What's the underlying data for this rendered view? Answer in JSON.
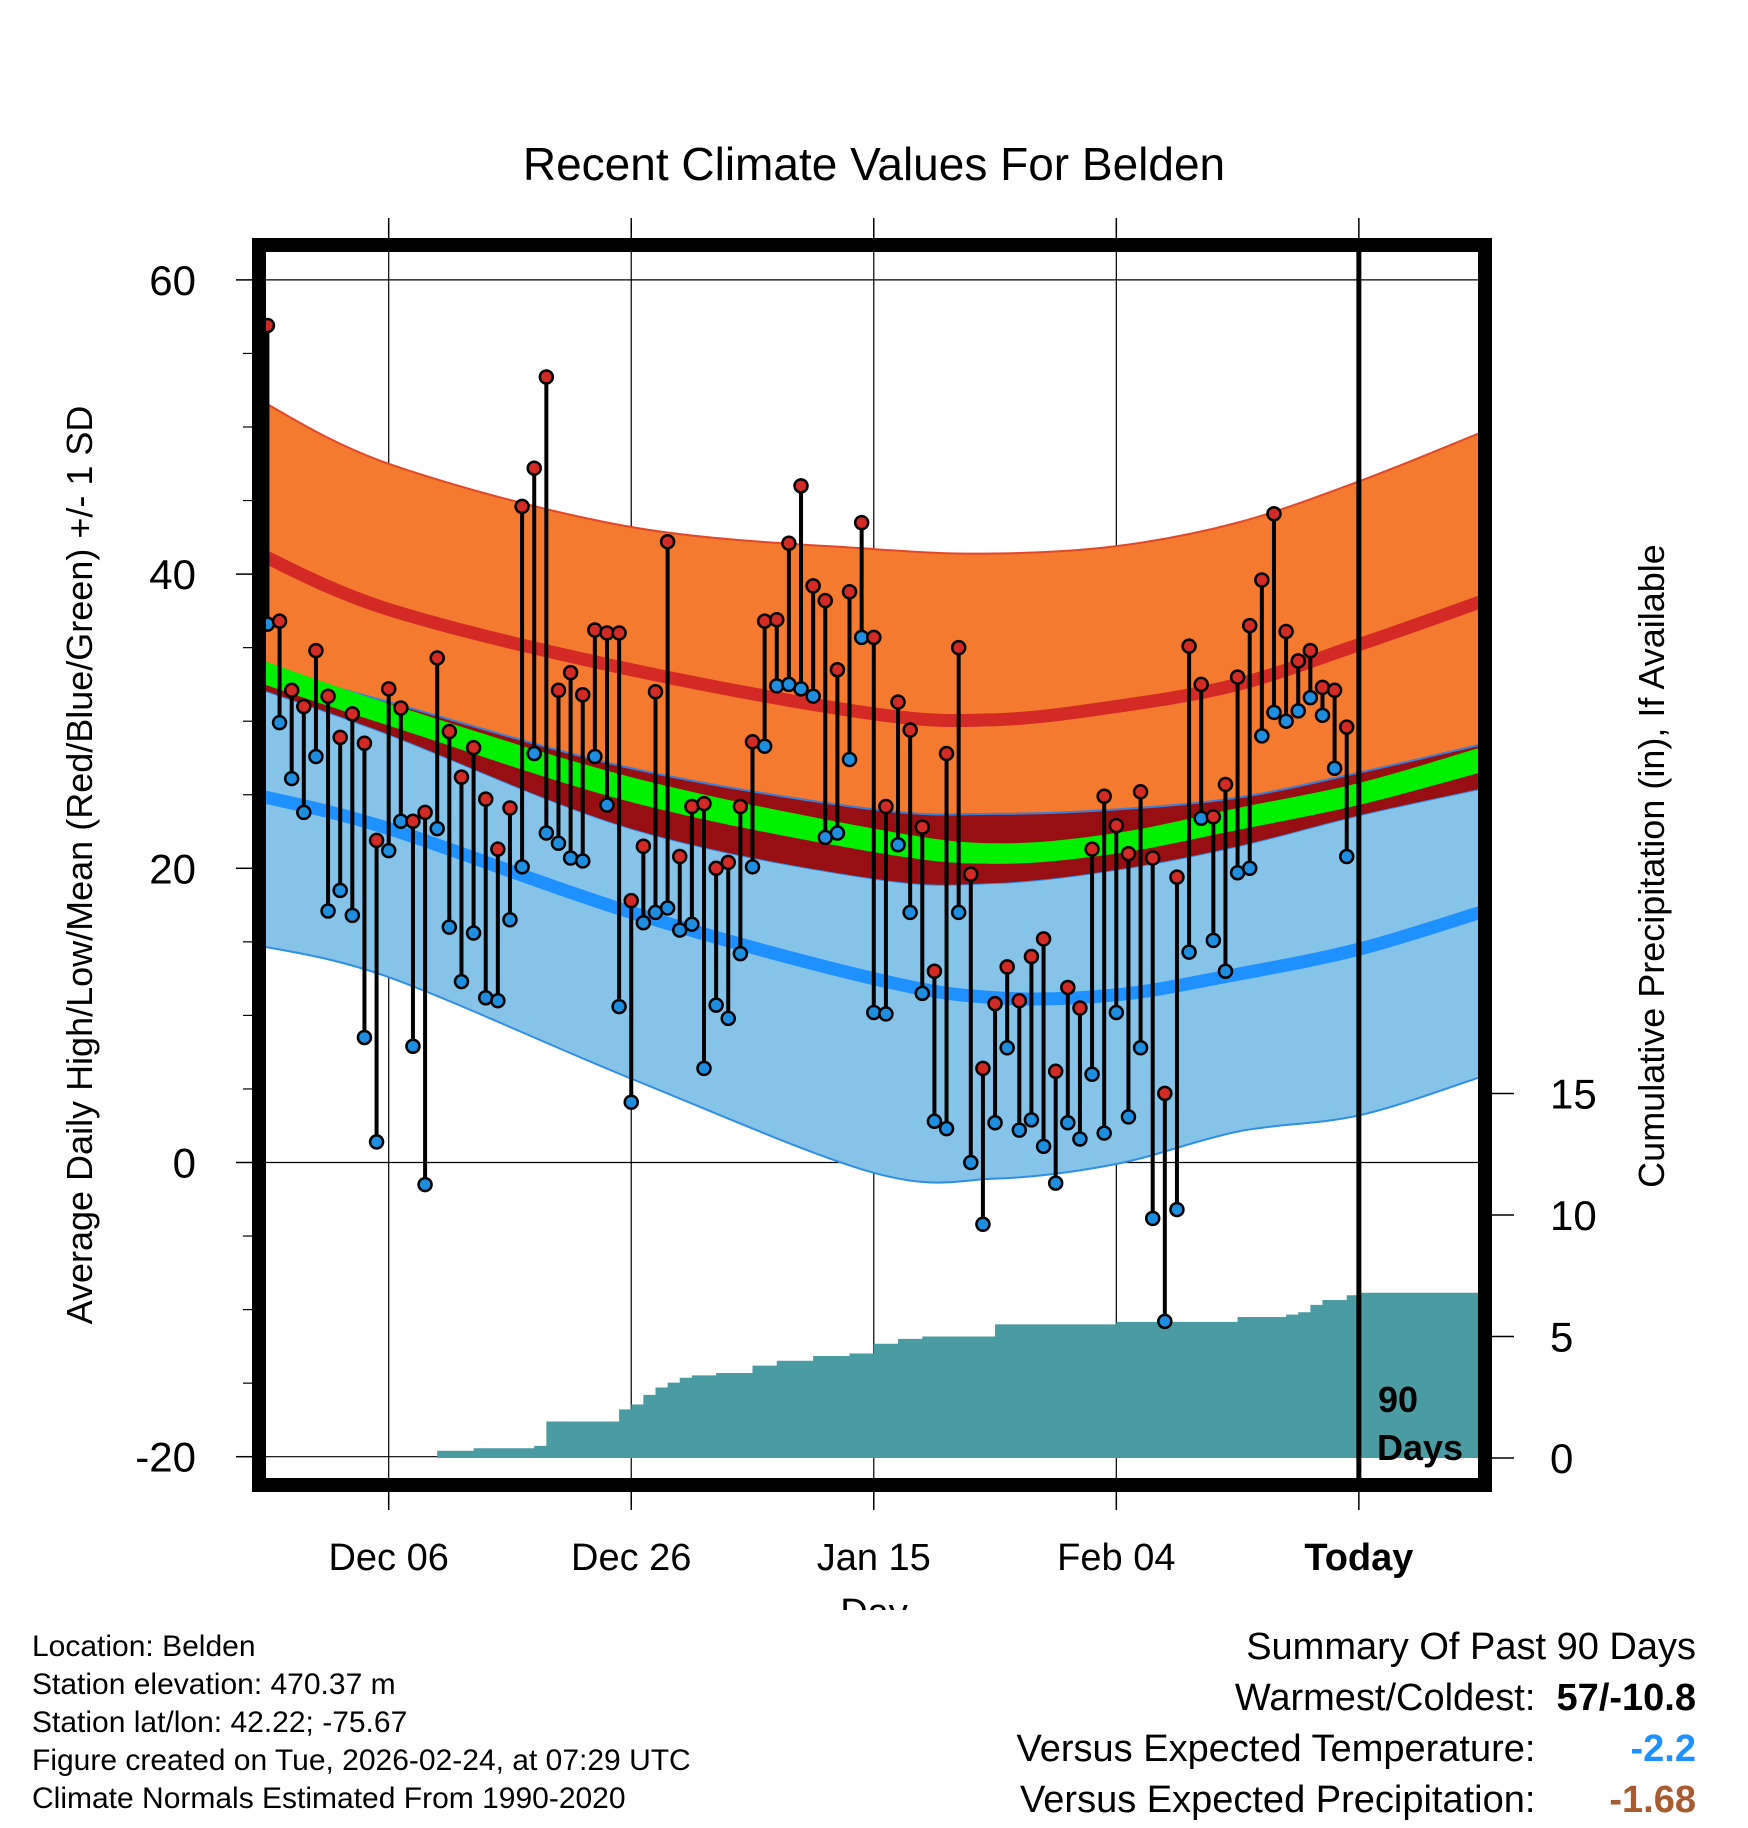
{
  "colors": {
    "orange_band": "#f47a30",
    "red_line": "#d42a26",
    "dark_red_band": "#970f12",
    "green_band": "#00f000",
    "blue_band": "#86c3e8",
    "blue_line": "#1e90ff",
    "precip": "#4a9ba2",
    "high_dot": "#d42a26",
    "low_dot": "#1e8ee0",
    "temp_anomaly": "#1e90ff",
    "precip_anomaly": "#a85a30"
  },
  "chart_data": {
    "type": "line",
    "title": "Recent Climate Values For Belden",
    "xlabel": "Day",
    "ylabel": "Average Daily High/Low/Mean (Red/Blue/Green) +/- 1 SD",
    "y2label": "Cumulative Precipitation (in), If Available",
    "xlim": [
      -11,
      90
    ],
    "ylim": [
      -20,
      60
    ],
    "y2lim": [
      0,
      45.3
    ],
    "x_ticks": [
      0,
      20,
      40,
      60,
      80
    ],
    "x_tick_labels": [
      "Dec 06",
      "Dec 26",
      "Jan 15",
      "Feb 04",
      "Today"
    ],
    "y_ticks": [
      -20,
      0,
      20,
      40,
      60
    ],
    "y_tick_labels": [
      "-20",
      "0",
      "20",
      "40",
      "60"
    ],
    "y2_ticks": [
      0,
      5,
      10,
      15
    ],
    "y2_tick_labels": [
      "0",
      "5",
      "10",
      "15"
    ],
    "today_x": 80,
    "today_label_lines": [
      "90",
      "Days"
    ],
    "normals": {
      "x": [
        -11,
        0,
        20,
        40,
        50,
        60,
        70,
        80,
        90
      ],
      "high_mean": [
        41.5,
        37.6,
        33.5,
        30.5,
        30.1,
        31.0,
        32.5,
        35.2,
        38.1
      ],
      "high_sd_upper": [
        52.0,
        47.5,
        43.2,
        41.7,
        41.4,
        41.9,
        43.5,
        46.3,
        49.6
      ],
      "low_mean": [
        25.0,
        22.7,
        17.0,
        12.5,
        11.2,
        11.4,
        12.8,
        14.5,
        17.0
      ],
      "low_sd_lower": [
        14.8,
        12.6,
        5.7,
        -0.7,
        -1.1,
        -0.1,
        2.1,
        3.2,
        5.8
      ],
      "mean_upper": [
        33.8,
        31.3,
        26.8,
        24.0,
        23.7,
        24.0,
        24.8,
        26.5,
        28.4
      ],
      "mean_green_top": [
        34.3,
        31.2,
        26.2,
        22.7,
        21.7,
        22.4,
        24.1,
        25.8,
        28.2
      ],
      "mean_green_bottom": [
        32.7,
        29.7,
        24.5,
        21.1,
        20.3,
        21.0,
        22.6,
        24.3,
        26.5
      ],
      "mean_lower": [
        32.3,
        29.1,
        22.7,
        19.3,
        19.0,
        19.9,
        21.5,
        23.6,
        25.4
      ]
    },
    "daily": {
      "x": [
        -10,
        -9,
        -8,
        -7,
        -6,
        -5,
        -4,
        -3,
        -2,
        -1,
        0,
        1,
        2,
        3,
        4,
        5,
        6,
        7,
        8,
        9,
        10,
        11,
        12,
        13,
        14,
        15,
        16,
        17,
        18,
        19,
        20,
        21,
        22,
        23,
        24,
        25,
        26,
        27,
        28,
        29,
        30,
        31,
        32,
        33,
        34,
        35,
        36,
        37,
        38,
        39,
        40,
        41,
        42,
        43,
        44,
        45,
        46,
        47,
        48,
        49,
        50,
        51,
        52,
        53,
        54,
        55,
        56,
        57,
        58,
        59,
        60,
        61,
        62,
        63,
        64,
        65,
        66,
        67,
        68,
        69,
        70,
        71,
        72,
        73,
        74,
        75,
        76,
        77,
        78,
        79
      ],
      "high": [
        56.9,
        36.8,
        32.1,
        31.0,
        34.8,
        31.7,
        28.9,
        30.5,
        28.5,
        21.9,
        32.2,
        30.9,
        23.2,
        23.8,
        34.3,
        29.3,
        26.2,
        28.2,
        24.7,
        21.3,
        24.1,
        44.6,
        47.2,
        53.4,
        32.1,
        33.3,
        31.8,
        36.2,
        36.0,
        36.0,
        17.8,
        21.5,
        32.0,
        42.2,
        20.8,
        24.2,
        24.4,
        20.0,
        20.4,
        24.2,
        28.6,
        36.8,
        36.9,
        42.1,
        46.0,
        39.2,
        38.2,
        33.5,
        38.8,
        43.5,
        35.7,
        24.2,
        31.3,
        29.4,
        22.8,
        13.0,
        27.8,
        35.0,
        19.6,
        6.4,
        10.8,
        13.3,
        11.0,
        14.0,
        15.2,
        6.2,
        11.9,
        10.5,
        21.3,
        24.9,
        22.9,
        21.0,
        25.2,
        20.7,
        4.7,
        19.4,
        35.1,
        32.5,
        23.5,
        25.7,
        33.0,
        36.5,
        39.6,
        44.1,
        36.1,
        34.1,
        34.8,
        32.3,
        32.1,
        29.6
      ],
      "low": [
        36.6,
        29.9,
        26.1,
        23.8,
        27.6,
        17.1,
        18.5,
        16.8,
        8.5,
        1.4,
        21.2,
        23.2,
        7.9,
        -1.5,
        22.7,
        16.0,
        12.3,
        15.6,
        11.2,
        11.0,
        16.5,
        20.1,
        27.8,
        22.4,
        21.7,
        20.7,
        20.5,
        27.6,
        24.3,
        10.6,
        4.1,
        16.3,
        17.0,
        17.3,
        15.8,
        16.2,
        6.4,
        10.7,
        9.8,
        14.2,
        20.1,
        28.3,
        32.4,
        32.5,
        32.2,
        31.7,
        22.1,
        22.4,
        27.4,
        35.7,
        10.2,
        10.1,
        21.6,
        17.0,
        11.5,
        2.8,
        2.3,
        17.0,
        0.0,
        -4.2,
        2.7,
        7.8,
        2.2,
        2.9,
        1.1,
        -1.4,
        2.7,
        1.6,
        6.0,
        2.0,
        10.2,
        3.1,
        7.8,
        -3.8,
        -10.8,
        -3.2,
        14.3,
        23.4,
        15.1,
        13.0,
        19.7,
        20.0,
        29.0,
        30.6,
        30.0,
        30.7,
        31.6,
        30.4,
        26.8,
        20.8
      ]
    },
    "precip_cumulative": {
      "x": [
        -11,
        3,
        4,
        7,
        12,
        13,
        16,
        19,
        20,
        21,
        22,
        23,
        24,
        25,
        27,
        30,
        32,
        35,
        38,
        40,
        42,
        44,
        49,
        50,
        60,
        70,
        74,
        75,
        76,
        77,
        79,
        80,
        90
      ],
      "values": [
        0.0,
        0.0,
        0.3,
        0.4,
        0.5,
        1.5,
        1.5,
        2.0,
        2.2,
        2.6,
        2.9,
        3.1,
        3.3,
        3.4,
        3.5,
        3.8,
        4.0,
        4.2,
        4.3,
        4.7,
        4.9,
        5.0,
        5.0,
        5.5,
        5.6,
        5.8,
        5.9,
        6.0,
        6.3,
        6.5,
        6.7,
        6.8,
        6.8
      ]
    }
  },
  "footer": {
    "location": "Location: Belden",
    "elevation": "Station elevation: 470.37 m",
    "latlon": "Station lat/lon: 42.22; -75.67",
    "created": "Figure created on Tue, 2026-02-24, at 07:29 UTC",
    "normals": "Climate Normals Estimated From 1990-2020"
  },
  "summary": {
    "title": "Summary Of Past 90 Days",
    "warmest_coldest_label": "Warmest/Coldest:",
    "warmest_coldest_value": "57/-10.8",
    "temp_label": "Versus Expected Temperature:",
    "temp_value": "-2.2",
    "precip_label": "Versus Expected Precipitation:",
    "precip_value": "-1.68"
  }
}
